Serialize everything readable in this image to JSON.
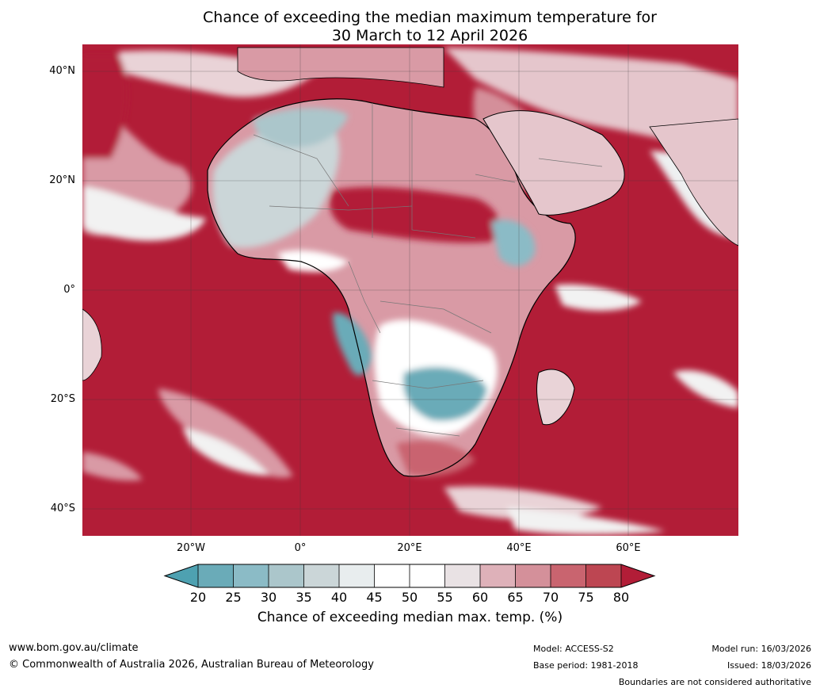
{
  "title": {
    "line1": "Chance of exceeding the median maximum temperature for",
    "line2": "30 March to 12 April 2026"
  },
  "axes": {
    "lat_labels": [
      "40°N",
      "20°N",
      "0°",
      "20°S",
      "40°S"
    ],
    "lon_labels": [
      "20°W",
      "0°",
      "20°E",
      "40°E",
      "60°E"
    ]
  },
  "colorbar": {
    "label": "Chance of exceeding median max. temp. (%)",
    "ticks": [
      "20",
      "25",
      "30",
      "35",
      "40",
      "45",
      "50",
      "55",
      "60",
      "65",
      "70",
      "75",
      "80"
    ],
    "colors": [
      "#4ea1b1",
      "#6aabb8",
      "#8bbbc6",
      "#abc6cb",
      "#cbd6d8",
      "#e8edee",
      "#ffffff",
      "#ffffff",
      "#e9e2e4",
      "#deb1b9",
      "#d4909a",
      "#c9646f",
      "#bd4652",
      "#b21d37"
    ]
  },
  "footer": {
    "website": "www.bom.gov.au/climate",
    "copyright": "© Commonwealth of Australia 2026, Australian Bureau of Meteorology",
    "model": "Model: ACCESS-S2",
    "base_period": "Base period: 1981-2018",
    "model_run": "Model run: 16/03/2026",
    "issued": "Issued: 18/03/2026",
    "disclaimer": "Boundaries are not considered authoritative"
  }
}
